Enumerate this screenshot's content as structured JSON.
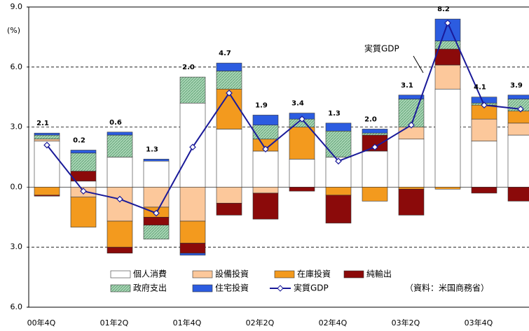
{
  "chart_data": {
    "type": "bar",
    "y_unit_label": "(%)",
    "annotation": "実質GDP",
    "source": "（資料：米国商務省）",
    "categories": [
      "00年4Q",
      null,
      "01年2Q",
      null,
      "01年4Q",
      null,
      "02年2Q",
      null,
      "02年4Q",
      null,
      "03年2Q",
      null,
      "03年4Q",
      null
    ],
    "ylim": [
      -6,
      9
    ],
    "yticks": [
      {
        "value": -6,
        "label": "6.0"
      },
      {
        "value": -3,
        "label": "3.0"
      },
      {
        "value": 0,
        "label": "0.0"
      },
      {
        "value": 3,
        "label": "3.0"
      },
      {
        "value": 6,
        "label": "6.0"
      },
      {
        "value": 9,
        "label": "9.0"
      }
    ],
    "grid": true,
    "series": [
      {
        "name": "個人消費",
        "color": "#ffffff",
        "values": [
          2.3,
          0.3,
          1.5,
          1.3,
          4.2,
          2.9,
          1.8,
          1.4,
          1.5,
          1.8,
          2.4,
          4.9,
          2.3,
          2.6
        ]
      },
      {
        "name": "設備投資",
        "color": "#fcc89b",
        "values": [
          0.1,
          -0.5,
          -1.7,
          -1.0,
          -1.7,
          -0.8,
          -0.3,
          0,
          0,
          0,
          0.6,
          1.2,
          1.1,
          0.6
        ]
      },
      {
        "name": "在庫投資",
        "color": "#f39a1e",
        "values": [
          -0.4,
          -1.5,
          -1.3,
          -0.5,
          -1.1,
          2.0,
          0.6,
          1.6,
          -0.4,
          -0.7,
          -0.1,
          -0.1,
          0.7,
          0.6
        ]
      },
      {
        "name": "純輸出",
        "color": "#8b0a0a",
        "values": [
          -0.05,
          0.5,
          -0.3,
          -0.4,
          -0.5,
          -0.6,
          -1.3,
          -0.2,
          -1.4,
          0.8,
          -1.3,
          0.8,
          -0.3,
          -0.7
        ]
      },
      {
        "name": "政府支出",
        "color": "#a8d5b5",
        "values": [
          0.2,
          0.9,
          1.1,
          -0.7,
          1.3,
          0.9,
          0.7,
          0.4,
          1.3,
          0.1,
          1.4,
          0.4,
          0.1,
          0.6
        ]
      },
      {
        "name": "住宅投資",
        "color": "#2c5ce0",
        "values": [
          0.1,
          0.15,
          0.15,
          0.1,
          -0.1,
          0.4,
          0.5,
          0.3,
          0.4,
          0.2,
          0.2,
          1.1,
          0.3,
          0.2
        ]
      },
      {
        "name": "実質GDP",
        "type": "line",
        "color": "#1a1a99",
        "values": [
          2.1,
          -0.2,
          -0.6,
          -1.3,
          2.0,
          4.7,
          1.9,
          3.4,
          1.3,
          2.0,
          3.1,
          8.2,
          4.1,
          3.9
        ],
        "value_labels": [
          "2.1",
          "0.2",
          "0.6",
          "1.3",
          "2.0",
          "4.7",
          "1.9",
          "3.4",
          "1.3",
          "2.0",
          "3.1",
          "8.2",
          "4.1",
          "3.9"
        ]
      }
    ]
  }
}
